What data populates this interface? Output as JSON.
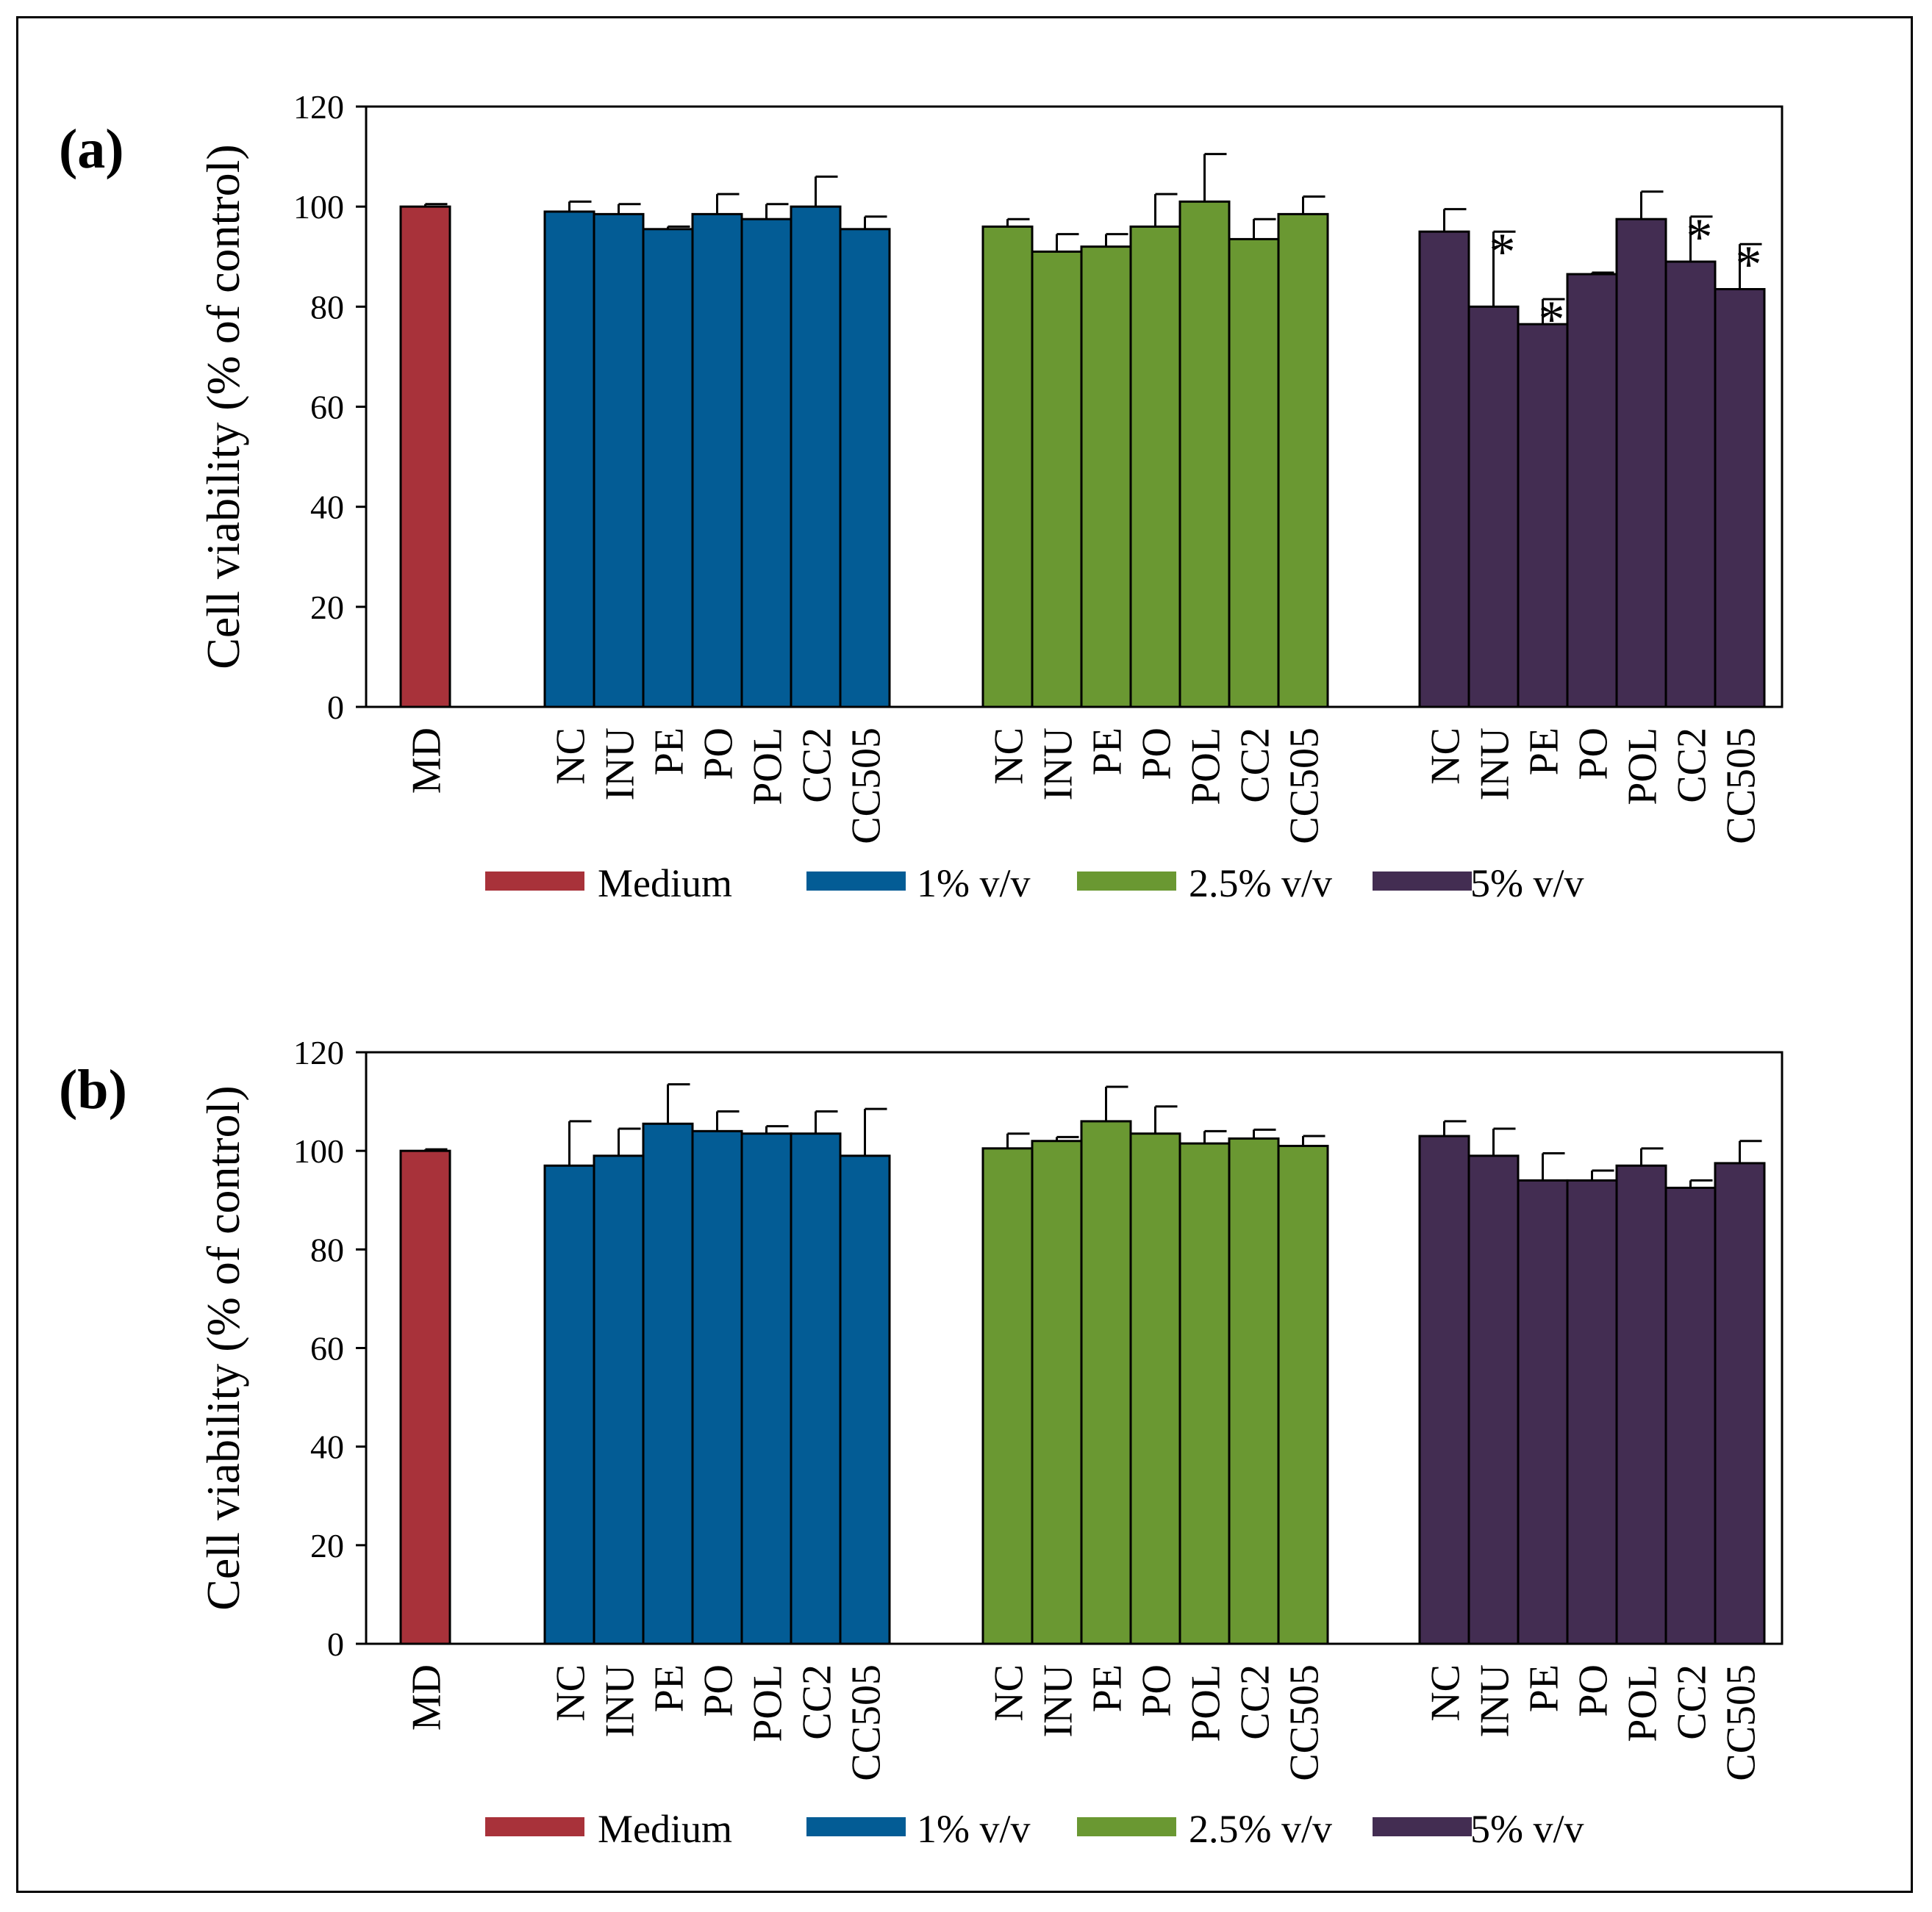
{
  "figure": {
    "panel_labels": [
      "(a)",
      "(b)"
    ]
  },
  "colors": {
    "Medium": "#a8323a",
    "1% v/v": "#035c95",
    "2.5% v/v": "#6a9832",
    "5% v/v": "#432d52"
  },
  "chart_data": [
    {
      "type": "bar",
      "panel": "(a)",
      "ylabel": "Cell viability (% of control)",
      "ylim": [
        0,
        120
      ],
      "yticks": [
        "0",
        "20",
        "40",
        "60",
        "80",
        "100",
        "120"
      ],
      "legend": [
        "Medium",
        "1% v/v",
        "2.5% v/v",
        "5% v/v"
      ],
      "legend_position": "bottom",
      "groups": [
        {
          "name": "Medium",
          "categories": [
            "MD"
          ],
          "values": [
            100
          ],
          "errors": [
            0.5
          ],
          "significant": [
            false
          ]
        },
        {
          "name": "1% v/v",
          "categories": [
            "NC",
            "INU",
            "PE",
            "PO",
            "POL",
            "CC2",
            "CC505"
          ],
          "values": [
            99,
            98.5,
            95.5,
            98.5,
            97.5,
            100,
            95.5
          ],
          "errors": [
            2,
            2,
            0.5,
            4,
            3,
            6,
            2.5
          ],
          "significant": [
            false,
            false,
            false,
            false,
            false,
            false,
            false
          ]
        },
        {
          "name": "2.5% v/v",
          "categories": [
            "NC",
            "INU",
            "PE",
            "PO",
            "POL",
            "CC2",
            "CC505"
          ],
          "values": [
            96,
            91,
            92,
            96,
            101,
            93.5,
            98.5
          ],
          "errors": [
            1.5,
            3.5,
            2.5,
            6.5,
            9.5,
            4,
            3.5
          ],
          "significant": [
            false,
            false,
            false,
            false,
            false,
            false,
            false
          ]
        },
        {
          "name": "5% v/v",
          "categories": [
            "NC",
            "INU",
            "PE",
            "PO",
            "POL",
            "CC2",
            "CC505"
          ],
          "values": [
            95,
            80,
            76.5,
            86.5,
            97.5,
            89,
            83.5
          ],
          "errors": [
            4.5,
            15,
            5,
            0.3,
            5.5,
            9,
            9
          ],
          "significant": [
            false,
            true,
            true,
            false,
            false,
            true,
            true
          ]
        }
      ],
      "significance_marker": "*"
    },
    {
      "type": "bar",
      "panel": "(b)",
      "ylabel": "Cell viability (% of control)",
      "ylim": [
        0,
        120
      ],
      "yticks": [
        "0",
        "20",
        "40",
        "60",
        "80",
        "100",
        "120"
      ],
      "legend": [
        "Medium",
        "1% v/v",
        "2.5% v/v",
        "5% v/v"
      ],
      "legend_position": "bottom",
      "groups": [
        {
          "name": "Medium",
          "categories": [
            "MD"
          ],
          "values": [
            100
          ],
          "errors": [
            0.3
          ],
          "significant": [
            false
          ]
        },
        {
          "name": "1% v/v",
          "categories": [
            "NC",
            "INU",
            "PE",
            "PO",
            "POL",
            "CC2",
            "CC505"
          ],
          "values": [
            97,
            99,
            105.5,
            104,
            103.5,
            103.5,
            99
          ],
          "errors": [
            9,
            5.5,
            8,
            4,
            1.5,
            4.5,
            9.5
          ],
          "significant": [
            false,
            false,
            false,
            false,
            false,
            false,
            false
          ]
        },
        {
          "name": "2.5% v/v",
          "categories": [
            "NC",
            "INU",
            "PE",
            "PO",
            "POL",
            "CC2",
            "CC505"
          ],
          "values": [
            100.5,
            102,
            106,
            103.5,
            101.5,
            102.5,
            101
          ],
          "errors": [
            3,
            0.8,
            7,
            5.5,
            2.5,
            1.8,
            2
          ],
          "significant": [
            false,
            false,
            false,
            false,
            false,
            false,
            false
          ]
        },
        {
          "name": "5% v/v",
          "categories": [
            "NC",
            "INU",
            "PE",
            "PO",
            "POL",
            "CC2",
            "CC505"
          ],
          "values": [
            103,
            99,
            94,
            94,
            97,
            92.5,
            97.5
          ],
          "errors": [
            3,
            5.5,
            5.5,
            2,
            3.5,
            1.5,
            4.5
          ],
          "significant": [
            false,
            false,
            false,
            false,
            false,
            false,
            false
          ]
        }
      ],
      "significance_marker": "*"
    }
  ]
}
